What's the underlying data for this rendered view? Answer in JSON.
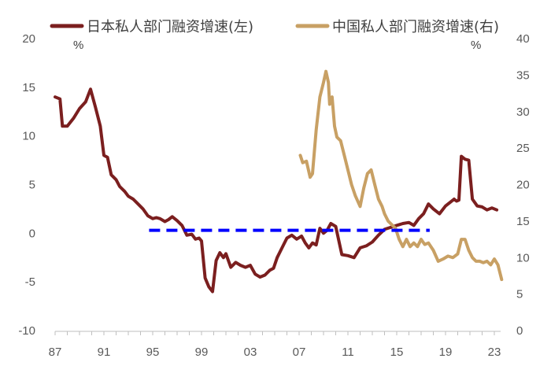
{
  "chart_data": {
    "type": "line",
    "y_left": {
      "ylim": [
        -10,
        20
      ],
      "ticks": [
        "-10",
        "-5",
        "0",
        "5",
        "10",
        "15",
        "20"
      ],
      "unit": "%"
    },
    "y_right": {
      "ylim": [
        0,
        40
      ],
      "ticks": [
        "0",
        "5",
        "10",
        "15",
        "20",
        "25",
        "30",
        "35",
        "40"
      ],
      "unit": "%"
    },
    "x_axis": {
      "ticks": [
        "87",
        "91",
        "95",
        "99",
        "03",
        "07",
        "11",
        "15",
        "19",
        "23"
      ],
      "tick_years": [
        1987,
        1991,
        1995,
        1999,
        2003,
        2007,
        2011,
        2015,
        2019,
        2023
      ]
    },
    "grid": false,
    "legend_position": "top",
    "series": [
      {
        "name": "日本私人部门融资增速(左)",
        "axis": "left",
        "color": "#7B1F1F",
        "x": [
          1987.0,
          1987.4,
          1987.6,
          1988.0,
          1988.5,
          1989.0,
          1989.5,
          1989.9,
          1990.3,
          1990.7,
          1991.0,
          1991.3,
          1991.6,
          1992.0,
          1992.3,
          1992.7,
          1993.0,
          1993.4,
          1993.8,
          1994.2,
          1994.6,
          1995.0,
          1995.3,
          1995.6,
          1996.0,
          1996.3,
          1996.6,
          1997.0,
          1997.4,
          1997.8,
          1998.2,
          1998.5,
          1998.8,
          1999.0,
          1999.3,
          1999.6,
          1999.9,
          2000.2,
          2000.5,
          2000.8,
          2001.0,
          2001.4,
          2001.8,
          2002.2,
          2002.6,
          2003.0,
          2003.4,
          2003.8,
          2004.2,
          2004.6,
          2004.9,
          2005.2,
          2005.6,
          2006.0,
          2006.4,
          2006.8,
          2007.2,
          2007.5,
          2007.8,
          2008.1,
          2008.4,
          2008.7,
          2009.0,
          2009.3,
          2009.6,
          2010.0,
          2010.5,
          2011.0,
          2011.5,
          2012.0,
          2012.5,
          2013.0,
          2013.5,
          2014.0,
          2014.5,
          2015.0,
          2015.5,
          2016.0,
          2016.4,
          2016.8,
          2017.2,
          2017.6,
          2018.0,
          2018.5,
          2019.0,
          2019.4,
          2019.7,
          2019.9,
          2020.1,
          2020.3,
          2020.6,
          2020.9,
          2021.2,
          2021.6,
          2022.0,
          2022.4,
          2022.8,
          2023.2
        ],
        "values": [
          14.0,
          13.8,
          11.0,
          11.0,
          11.8,
          12.8,
          13.5,
          14.8,
          13.0,
          11.0,
          8.0,
          7.8,
          6.0,
          5.5,
          4.8,
          4.3,
          3.8,
          3.5,
          3.0,
          2.5,
          1.8,
          1.5,
          1.6,
          1.5,
          1.2,
          1.4,
          1.7,
          1.3,
          0.8,
          -0.2,
          -0.1,
          -0.6,
          -0.5,
          -0.8,
          -4.6,
          -5.5,
          -6.0,
          -2.8,
          -2.0,
          -2.5,
          -2.1,
          -3.5,
          -3.0,
          -3.3,
          -3.5,
          -3.3,
          -4.2,
          -4.5,
          -4.3,
          -3.8,
          -3.6,
          -2.5,
          -1.5,
          -0.5,
          -0.2,
          -0.6,
          -0.3,
          -1.0,
          -1.5,
          -1.0,
          -1.2,
          0.5,
          0.0,
          0.3,
          1.0,
          0.7,
          -2.2,
          -2.3,
          -2.5,
          -1.5,
          -1.3,
          -0.9,
          -0.2,
          0.4,
          0.6,
          0.8,
          1.0,
          1.1,
          0.8,
          1.5,
          2.0,
          3.0,
          2.5,
          2.0,
          2.8,
          3.2,
          3.5,
          3.3,
          3.4,
          7.9,
          7.6,
          7.5,
          3.5,
          2.8,
          2.7,
          2.4,
          2.6,
          2.4
        ]
      },
      {
        "name": "中国私人部门融资增速(右)",
        "axis": "right",
        "color": "#C8A064",
        "x": [
          2007.1,
          2007.3,
          2007.6,
          2007.9,
          2008.1,
          2008.4,
          2008.7,
          2009.0,
          2009.2,
          2009.4,
          2009.5,
          2009.7,
          2009.9,
          2010.1,
          2010.4,
          2010.7,
          2011.0,
          2011.3,
          2011.6,
          2012.0,
          2012.3,
          2012.6,
          2012.9,
          2013.2,
          2013.5,
          2013.8,
          2014.0,
          2014.3,
          2014.6,
          2014.9,
          2015.2,
          2015.5,
          2015.8,
          2016.1,
          2016.4,
          2016.7,
          2017.0,
          2017.3,
          2017.6,
          2018.0,
          2018.4,
          2018.8,
          2019.2,
          2019.6,
          2020.0,
          2020.3,
          2020.6,
          2020.9,
          2021.2,
          2021.5,
          2021.8,
          2022.1,
          2022.4,
          2022.7,
          2023.0,
          2023.3,
          2023.6
        ],
        "values": [
          24.0,
          23.0,
          23.2,
          21.0,
          21.5,
          27.5,
          32.0,
          34.0,
          35.5,
          34.0,
          31.0,
          32.0,
          28.0,
          26.5,
          26.0,
          24.0,
          22.0,
          20.0,
          18.5,
          17.0,
          19.5,
          21.5,
          22.0,
          20.0,
          18.0,
          17.0,
          16.0,
          15.0,
          14.5,
          14.0,
          12.5,
          11.5,
          12.5,
          11.5,
          12.0,
          11.5,
          12.5,
          11.8,
          12.0,
          11.0,
          9.5,
          9.8,
          10.2,
          10.0,
          10.5,
          12.5,
          12.5,
          11.0,
          10.0,
          9.5,
          9.5,
          9.3,
          9.5,
          9.0,
          9.8,
          9.0,
          7.0
        ]
      },
      {
        "name": "",
        "axis": "left",
        "color": "#0000FF",
        "style": "dashed",
        "x": [
          1994.7,
          2017.7
        ],
        "values": [
          0.3,
          0.3
        ]
      }
    ]
  }
}
